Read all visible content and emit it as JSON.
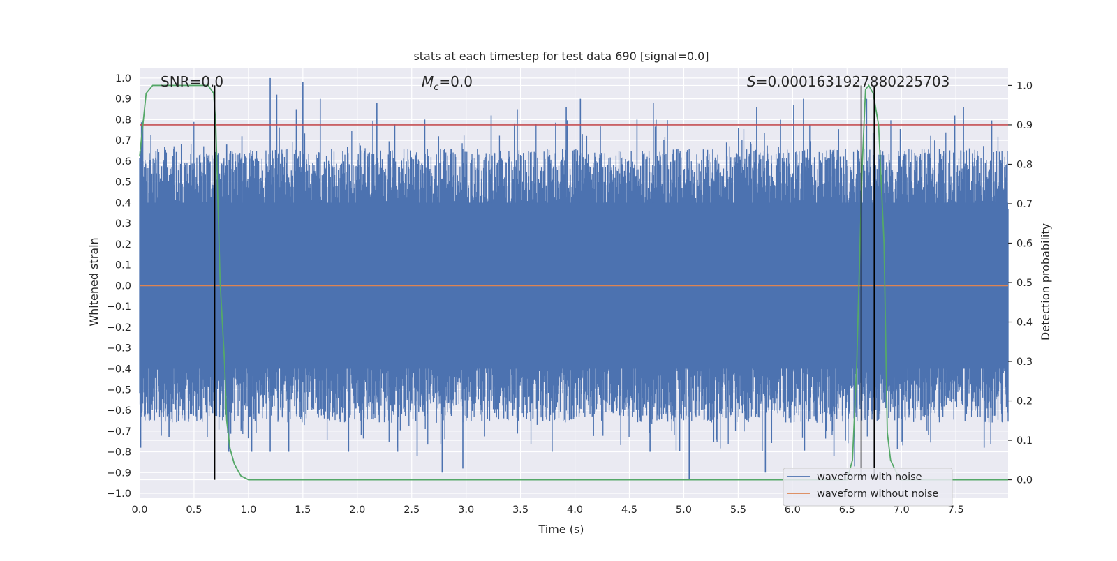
{
  "chart_data": {
    "type": "line",
    "title": "stats at each timestep for test data 690 [signal=0.0]",
    "xlabel": "Time (s)",
    "ylabel": "Whitened strain",
    "y2label": "Detection probability",
    "xlim": [
      0.0,
      7.98
    ],
    "ylim": [
      -1.02,
      1.05
    ],
    "y2lim": [
      -0.045,
      1.045
    ],
    "x_ticks": [
      "0.0",
      "0.5",
      "1.0",
      "1.5",
      "2.0",
      "2.5",
      "3.0",
      "3.5",
      "4.0",
      "4.5",
      "5.0",
      "5.5",
      "6.0",
      "6.5",
      "7.0",
      "7.5"
    ],
    "y_ticks": [
      "1.0",
      "0.9",
      "0.8",
      "0.7",
      "0.6",
      "0.5",
      "0.4",
      "0.3",
      "0.2",
      "0.1",
      "0.0",
      "−0.1",
      "−0.2",
      "−0.3",
      "−0.4",
      "−0.5",
      "−0.6",
      "−0.7",
      "−0.8",
      "−0.9",
      "−1.0"
    ],
    "y2_ticks": [
      "1.0",
      "0.9",
      "0.8",
      "0.7",
      "0.6",
      "0.5",
      "0.4",
      "0.3",
      "0.2",
      "0.1",
      "0.0"
    ],
    "grid": true,
    "legend_position": "lower-right",
    "annotations": {
      "snr": "SNR=0.0",
      "mc_symbol": "M",
      "mc_sub": "c",
      "mc_value": "=0.0",
      "s_symbol": "S",
      "s_value": "=0.0001631927880225703"
    },
    "series": [
      {
        "name": "waveform with noise",
        "color": "#4c72b0",
        "axis": "left",
        "peaks_upper": [
          [
            0.03,
            0.6
          ],
          [
            0.15,
            0.65
          ],
          [
            0.23,
            0.67
          ],
          [
            0.46,
            0.58
          ],
          [
            0.6,
            0.47
          ],
          [
            0.8,
            0.68
          ],
          [
            0.94,
            0.72
          ],
          [
            1.2,
            1.0
          ],
          [
            1.26,
            0.92
          ],
          [
            1.44,
            0.85
          ],
          [
            1.5,
            0.98
          ],
          [
            1.66,
            0.9
          ],
          [
            2.18,
            0.88
          ],
          [
            2.62,
            0.8
          ],
          [
            3.23,
            0.82
          ],
          [
            3.47,
            0.85
          ],
          [
            3.92,
            0.86
          ],
          [
            4.05,
            0.9
          ],
          [
            4.57,
            0.8
          ],
          [
            4.72,
            0.88
          ],
          [
            5.67,
            0.86
          ],
          [
            6.01,
            0.87
          ],
          [
            6.1,
            0.9
          ],
          [
            6.68,
            0.9
          ],
          [
            7.49,
            0.82
          ],
          [
            7.57,
            0.86
          ],
          [
            7.9,
            0.5
          ]
        ],
        "peaks_lower": [
          [
            0.01,
            -0.78
          ],
          [
            0.27,
            -0.73
          ],
          [
            0.82,
            -0.8
          ],
          [
            1.03,
            -0.8
          ],
          [
            1.2,
            -0.8
          ],
          [
            1.37,
            -0.8
          ],
          [
            1.92,
            -0.8
          ],
          [
            2.55,
            -0.82
          ],
          [
            2.78,
            -0.9
          ],
          [
            2.97,
            -0.88
          ],
          [
            3.79,
            -0.8
          ],
          [
            4.69,
            -0.8
          ],
          [
            5.05,
            -0.93
          ],
          [
            5.3,
            -0.74
          ],
          [
            5.75,
            -0.9
          ],
          [
            6.38,
            -0.82
          ],
          [
            6.57,
            -0.87
          ],
          [
            7.01,
            -0.75
          ],
          [
            7.76,
            -0.78
          ],
          [
            7.92,
            -0.6
          ]
        ],
        "band": [
          -0.4,
          0.4
        ],
        "typical_range": [
          -0.6,
          0.6
        ]
      },
      {
        "name": "waveform without noise",
        "color": "#dd8452",
        "axis": "left",
        "x": [
          0.0,
          7.98
        ],
        "y": [
          0.0,
          0.0
        ]
      },
      {
        "name": "",
        "color": "#55a868",
        "axis": "right",
        "x": [
          0.0,
          0.03,
          0.06,
          0.12,
          0.2,
          0.4,
          0.55,
          0.63,
          0.68,
          0.7,
          0.74,
          0.78,
          0.8,
          0.83,
          0.87,
          0.93,
          1.0,
          2.0,
          2.4,
          3.0,
          4.0,
          5.0,
          6.0,
          6.5,
          6.55,
          6.59,
          6.62,
          6.64,
          6.67,
          6.7,
          6.74,
          6.79,
          6.84,
          6.87,
          6.9,
          6.95,
          7.0,
          7.98
        ],
        "y": [
          0.82,
          0.9,
          0.98,
          1.0,
          1.0,
          1.0,
          1.0,
          1.0,
          0.98,
          0.9,
          0.5,
          0.3,
          0.15,
          0.08,
          0.04,
          0.01,
          0.0,
          0.0,
          0.0,
          0.0,
          0.0,
          0.0,
          0.0,
          0.0,
          0.05,
          0.3,
          0.6,
          0.8,
          0.99,
          1.0,
          0.98,
          0.9,
          0.6,
          0.12,
          0.05,
          0.02,
          0.0,
          0.0
        ]
      },
      {
        "name": "",
        "color": "#c44e52",
        "axis": "right",
        "type": "hline",
        "y": 0.9
      }
    ],
    "vertical_lines": {
      "color": "#000000",
      "axis": "right",
      "x": [
        0.69,
        6.63,
        6.75
      ],
      "y_range": [
        0.0,
        1.0
      ]
    }
  }
}
